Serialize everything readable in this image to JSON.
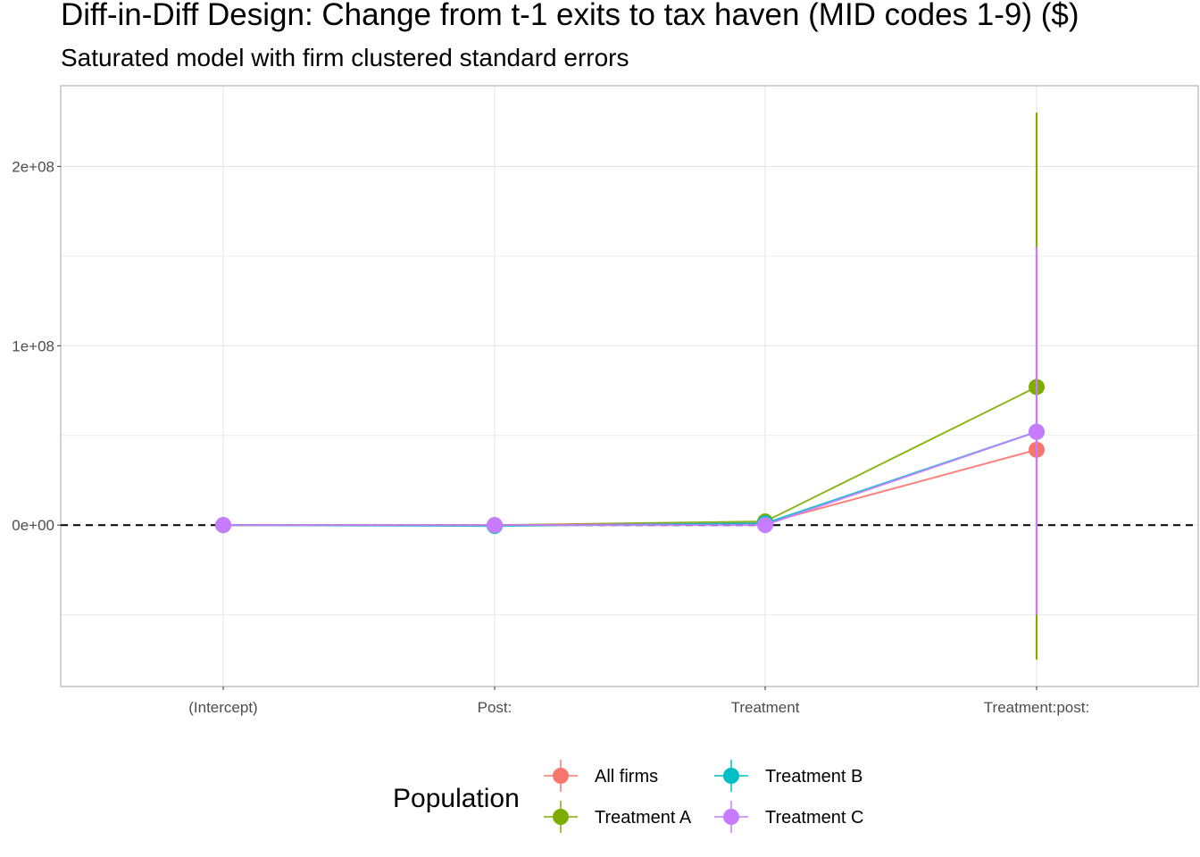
{
  "chart_data": {
    "type": "line",
    "title": "Diff-in-Diff Design: Change from t-1 exits to tax haven (MID codes 1-9)  ($)",
    "subtitle": "Saturated model with firm clustered standard errors",
    "xlabel": "",
    "ylabel": "",
    "categories": [
      "(Intercept)",
      "Post:",
      "Treatment",
      "Treatment:post:"
    ],
    "y_ticks": [
      {
        "value": 0,
        "label": "0e+00"
      },
      {
        "value": 100000000,
        "label": "1e+08"
      },
      {
        "value": 200000000,
        "label": "2e+08"
      }
    ],
    "y_minor_ticks": [
      -50000000,
      50000000,
      150000000
    ],
    "ylim": [
      -90000000,
      245000000
    ],
    "reference_line": {
      "value": 0,
      "style": "dashed",
      "color": "#000000"
    },
    "grid": true,
    "legend": {
      "title": "Population",
      "position": "bottom"
    },
    "series": [
      {
        "name": "All firms",
        "color": "#F8766D",
        "values": [
          0,
          0,
          1000000,
          42000000
        ],
        "lower": [
          0,
          0,
          0,
          42000000
        ],
        "upper": [
          0,
          0,
          2000000,
          42000000
        ]
      },
      {
        "name": "Treatment A",
        "color": "#7CAE00",
        "values": [
          0,
          0,
          2000000,
          77000000
        ],
        "lower": [
          0,
          0,
          0,
          -75000000
        ],
        "upper": [
          0,
          0,
          4000000,
          230000000
        ]
      },
      {
        "name": "Treatment B",
        "color": "#00BFC4",
        "values": [
          0,
          -500000,
          1000000,
          52000000
        ],
        "lower": [
          0,
          -500000,
          0,
          52000000
        ],
        "upper": [
          0,
          -500000,
          2000000,
          52000000
        ]
      },
      {
        "name": "Treatment C",
        "color": "#C77CFF",
        "values": [
          0,
          0,
          0,
          52000000
        ],
        "lower": [
          0,
          0,
          0,
          -50000000
        ],
        "upper": [
          0,
          0,
          1000000,
          155000000
        ]
      }
    ],
    "series_draw_order": [
      1,
      0,
      2,
      3
    ]
  }
}
